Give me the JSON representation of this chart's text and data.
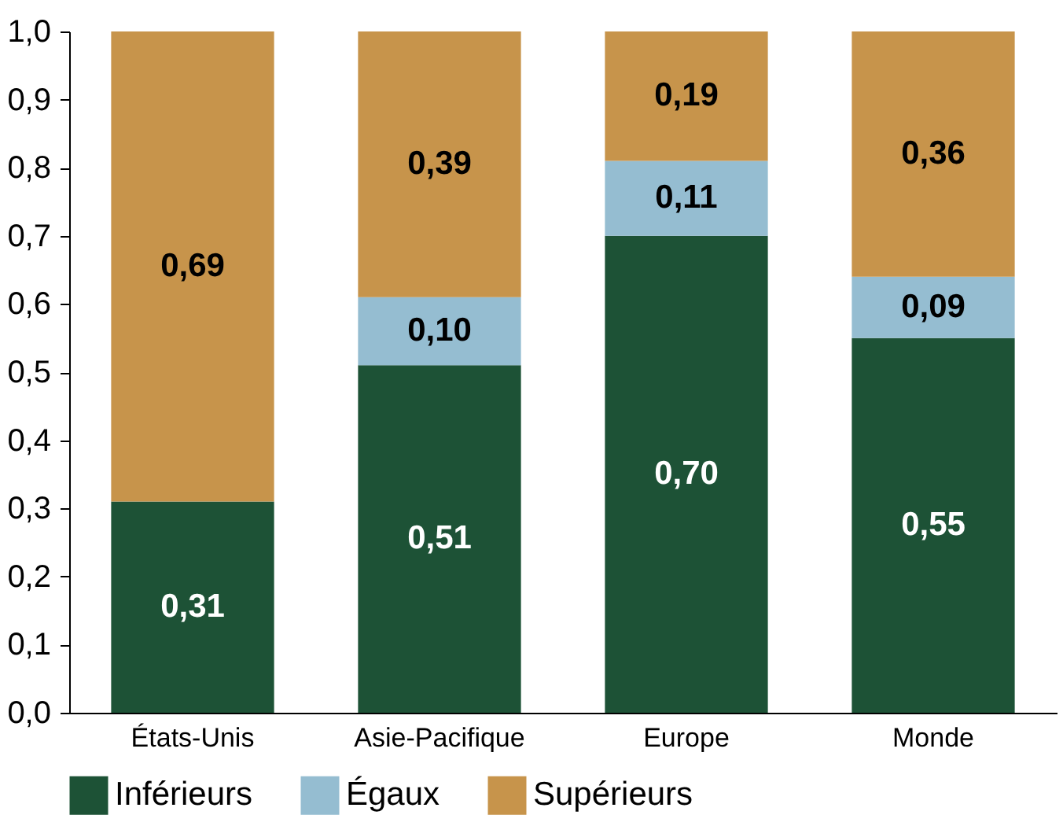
{
  "chart_data": {
    "type": "bar",
    "stacked": true,
    "categories": [
      "États-Unis",
      "Asie-Pacifique",
      "Europe",
      "Monde"
    ],
    "series": [
      {
        "name": "Inférieurs",
        "color": "#1d5236",
        "values": [
          0.31,
          0.51,
          0.7,
          0.55
        ],
        "value_labels": [
          "0,31",
          "0,51",
          "0,70",
          "0,55"
        ]
      },
      {
        "name": "Égaux",
        "color": "#95bdd1",
        "values": [
          null,
          0.1,
          0.11,
          0.09
        ],
        "value_labels": [
          null,
          "0,10",
          "0,11",
          "0,09"
        ]
      },
      {
        "name": "Supérieurs",
        "color": "#c7944b",
        "values": [
          0.69,
          0.39,
          0.19,
          0.36
        ],
        "value_labels": [
          "0,69",
          "0,39",
          "0,19",
          "0,36"
        ]
      }
    ],
    "ylim": [
      0,
      1
    ],
    "yticks": [
      {
        "value": 0,
        "label": "0,0"
      },
      {
        "value": 0.1,
        "label": "0,1"
      },
      {
        "value": 0.2,
        "label": "0,2"
      },
      {
        "value": 0.3,
        "label": "0,3"
      },
      {
        "value": 0.4,
        "label": "0,4"
      },
      {
        "value": 0.5,
        "label": "0,5"
      },
      {
        "value": 0.6,
        "label": "0,6"
      },
      {
        "value": 0.7,
        "label": "0,7"
      },
      {
        "value": 0.8,
        "label": "0,8"
      },
      {
        "value": 0.9,
        "label": "0,9"
      },
      {
        "value": 1,
        "label": "1,0"
      }
    ],
    "grid": false,
    "legend": "bottom"
  }
}
